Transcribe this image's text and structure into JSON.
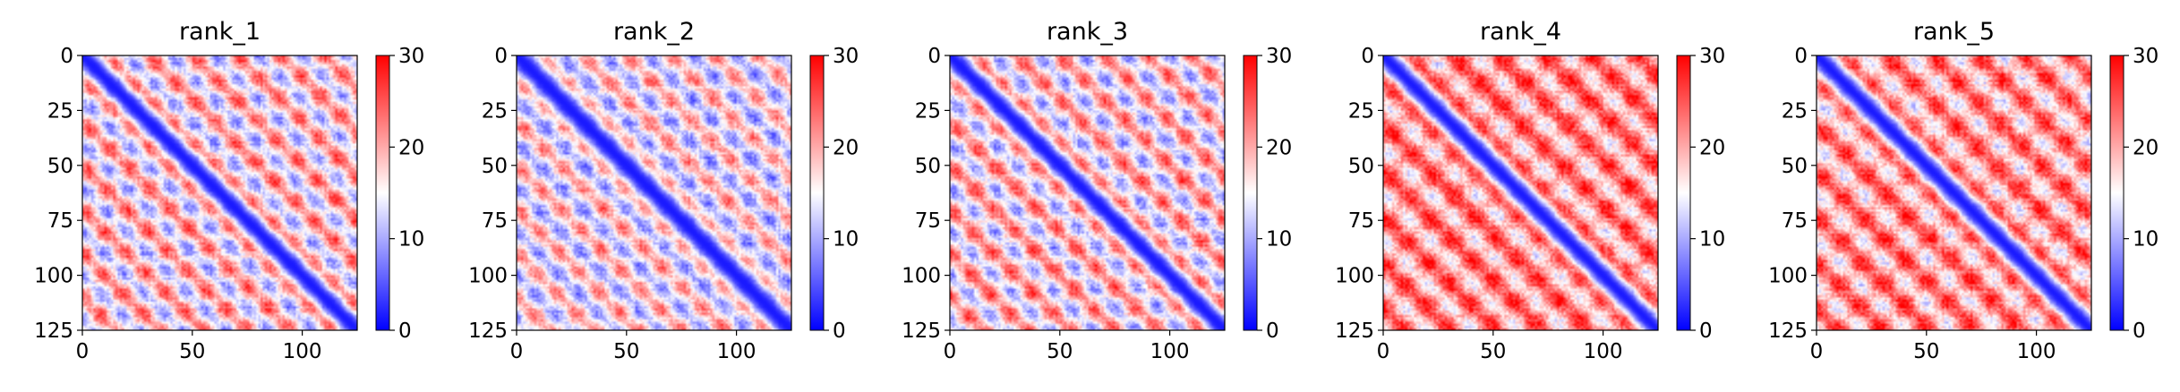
{
  "figure": {
    "colormap": [
      "#0000ff",
      "#ffffff",
      "#ff0000"
    ],
    "colorbar_ticks": [
      0,
      10,
      20,
      30
    ],
    "x_ticks": [
      0,
      50,
      100
    ],
    "y_ticks": [
      0,
      25,
      50,
      75,
      100,
      125
    ]
  },
  "chart_data": [
    {
      "type": "heatmap",
      "title": "rank_1",
      "xlim": [
        0,
        125
      ],
      "ylim": [
        125,
        0
      ],
      "clim": [
        0,
        30
      ],
      "colormap": "bwr",
      "pattern": {
        "diagonal_width": 4.5,
        "period": 20,
        "cross_period": 18,
        "background": 17,
        "blob_amplitude": 6.5,
        "cross_amplitude": 4.5,
        "noise": 2.5,
        "seed": 11
      }
    },
    {
      "type": "heatmap",
      "title": "rank_2",
      "xlim": [
        0,
        125
      ],
      "ylim": [
        125,
        0
      ],
      "clim": [
        0,
        30
      ],
      "colormap": "bwr",
      "pattern": {
        "diagonal_width": 5,
        "period": 20,
        "cross_period": 18,
        "background": 15.5,
        "blob_amplitude": 6,
        "cross_amplitude": 4,
        "noise": 2.5,
        "seed": 23
      }
    },
    {
      "type": "heatmap",
      "title": "rank_3",
      "xlim": [
        0,
        125
      ],
      "ylim": [
        125,
        0
      ],
      "clim": [
        0,
        30
      ],
      "colormap": "bwr",
      "pattern": {
        "diagonal_width": 4.5,
        "period": 20,
        "cross_period": 18,
        "background": 17,
        "blob_amplitude": 6.5,
        "cross_amplitude": 4.5,
        "noise": 2.5,
        "seed": 37
      }
    },
    {
      "type": "heatmap",
      "title": "rank_4",
      "xlim": [
        0,
        125
      ],
      "ylim": [
        125,
        0
      ],
      "clim": [
        0,
        30
      ],
      "colormap": "bwr",
      "pattern": {
        "diagonal_width": 5,
        "period": 21,
        "cross_period": 19,
        "background": 21.5,
        "blob_amplitude": 5.5,
        "cross_amplitude": 3.5,
        "noise": 3,
        "seed": 41
      }
    },
    {
      "type": "heatmap",
      "title": "rank_5",
      "xlim": [
        0,
        125
      ],
      "ylim": [
        125,
        0
      ],
      "clim": [
        0,
        30
      ],
      "colormap": "bwr",
      "pattern": {
        "diagonal_width": 5,
        "period": 21,
        "cross_period": 19,
        "background": 21,
        "blob_amplitude": 5.5,
        "cross_amplitude": 4,
        "noise": 3,
        "seed": 53
      }
    }
  ]
}
